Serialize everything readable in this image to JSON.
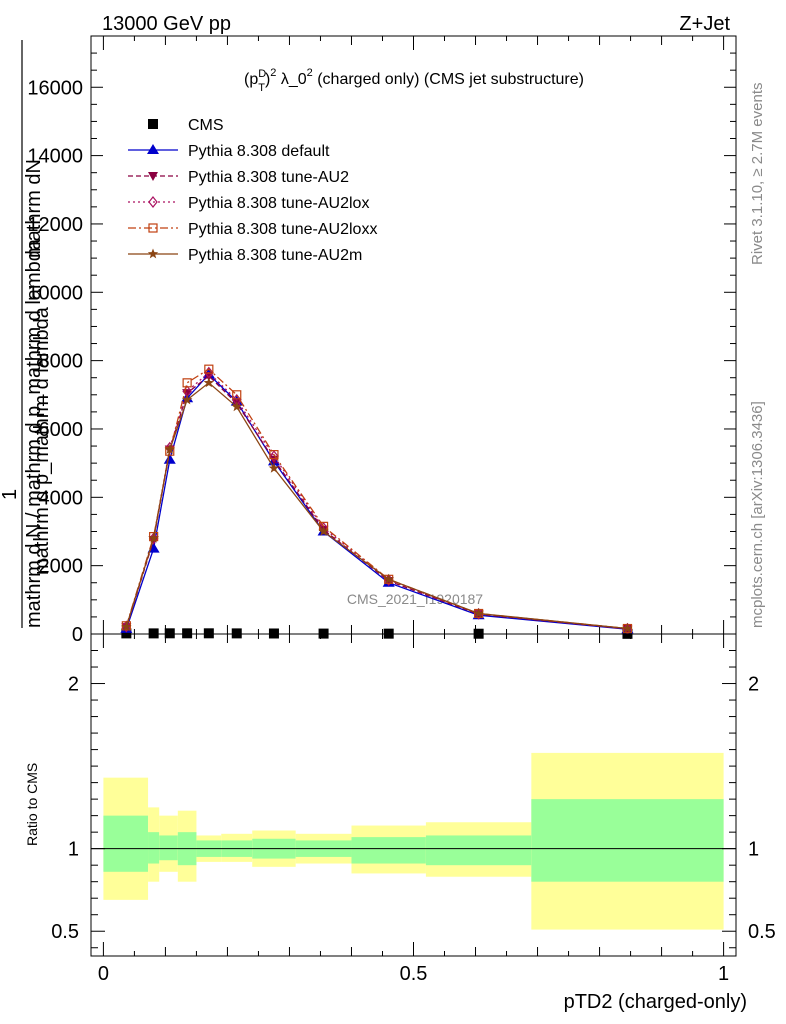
{
  "header": {
    "energy_label": "13000 GeV pp",
    "process_label": "Z+Jet"
  },
  "side_texts": {
    "rivet": "Rivet 3.1.10, ≥ 2.7M events",
    "mcplots": "mcplots.cern.ch [arXiv:1306.3436]"
  },
  "watermark": "CMS_2021_I1920187",
  "chart_data": [
    {
      "type": "line",
      "title": "(p_T^D)^2 λ_0^2 (charged only) (CMS jet substructure)",
      "title_parts": {
        "base": "(p",
        "sup1": "D",
        "sub1": "T",
        "mid": ")",
        "sup2": "2",
        "rest1": " λ_0",
        "sup3": "2",
        "rest2": " (charged only) (CMS jet substructure)"
      },
      "ylabel_top": "mathrm dN",
      "ylabel_bottom": "mathrm d p_mathrm d lambda",
      "ylabel_mid": "mathrm d N / mathrm d p_mathrm d p_mathrm d lambda",
      "ylabel_one": "1",
      "ylabel_long": "mathrm d N / mathrm d p_mathrm d lambda",
      "xlim": [
        -0.02,
        1.02
      ],
      "ylim": [
        0,
        17500
      ],
      "yticks": [
        0,
        2000,
        4000,
        6000,
        8000,
        10000,
        12000,
        14000,
        16000
      ],
      "ytick_labels": [
        "0",
        "2000",
        "4000",
        "6000",
        "8000",
        "10000",
        "12000",
        "14000",
        "16000"
      ],
      "legend_position": "top-left",
      "x": [
        0.037,
        0.081,
        0.107,
        0.135,
        0.17,
        0.215,
        0.275,
        0.355,
        0.46,
        0.605,
        0.845
      ],
      "series": [
        {
          "name": "CMS",
          "color": "#000000",
          "marker": "square",
          "dash": "none",
          "values": [
            18,
            18,
            20,
            20,
            20,
            18,
            15,
            12,
            10,
            8,
            5
          ]
        },
        {
          "name": "Pythia 8.308 default",
          "color": "#0000cc",
          "marker": "triangle-up",
          "dash": "solid",
          "values": [
            150,
            2500,
            5100,
            6900,
            7600,
            6800,
            5050,
            3000,
            1500,
            550,
            140
          ]
        },
        {
          "name": "Pythia 8.308 tune-AU2",
          "color": "#8b0040",
          "marker": "triangle-down",
          "dash": "5,3",
          "values": [
            200,
            2750,
            5400,
            7050,
            7550,
            6750,
            5100,
            3050,
            1550,
            580,
            150
          ]
        },
        {
          "name": "Pythia 8.308 tune-AU2lox",
          "color": "#aa1060",
          "marker": "diamond",
          "dash": "2,3",
          "values": [
            220,
            2800,
            5450,
            7100,
            7650,
            6850,
            5200,
            3100,
            1580,
            590,
            155
          ]
        },
        {
          "name": "Pythia 8.308 tune-AU2loxx",
          "color": "#c04010",
          "marker": "square-open",
          "dash": "8,3,2,3",
          "values": [
            240,
            2850,
            5350,
            7350,
            7750,
            7000,
            5250,
            3150,
            1600,
            600,
            160
          ]
        },
        {
          "name": "Pythia 8.308 tune-AU2m",
          "color": "#8b4513",
          "marker": "star",
          "dash": "solid",
          "values": [
            210,
            2800,
            5400,
            6850,
            7350,
            6650,
            4850,
            3000,
            1600,
            600,
            160
          ]
        }
      ]
    },
    {
      "type": "area",
      "ylabel": "Ratio to CMS",
      "xlabel": "pTD2 (charged-only)",
      "xlim": [
        -0.02,
        1.02
      ],
      "ylim": [
        0.35,
        2.3
      ],
      "yticks": [
        0.5,
        1,
        2
      ],
      "ytick_labels": [
        "0.5",
        "1",
        "2"
      ],
      "xticks": [
        0,
        0.5,
        1
      ],
      "xtick_labels": [
        "0",
        "0.5",
        "1"
      ],
      "reference_line": 1,
      "bands": [
        {
          "x0": 0.0,
          "x1": 0.072,
          "green": [
            0.86,
            1.2
          ],
          "yellow": [
            0.69,
            1.43
          ]
        },
        {
          "x0": 0.072,
          "x1": 0.09,
          "green": [
            0.91,
            1.1
          ],
          "yellow": [
            0.8,
            1.25
          ]
        },
        {
          "x0": 0.09,
          "x1": 0.12,
          "green": [
            0.93,
            1.08
          ],
          "yellow": [
            0.86,
            1.2
          ]
        },
        {
          "x0": 0.12,
          "x1": 0.15,
          "green": [
            0.9,
            1.1
          ],
          "yellow": [
            0.8,
            1.23
          ]
        },
        {
          "x0": 0.15,
          "x1": 0.19,
          "green": [
            0.95,
            1.05
          ],
          "yellow": [
            0.92,
            1.08
          ]
        },
        {
          "x0": 0.19,
          "x1": 0.24,
          "green": [
            0.95,
            1.05
          ],
          "yellow": [
            0.92,
            1.09
          ]
        },
        {
          "x0": 0.24,
          "x1": 0.31,
          "green": [
            0.94,
            1.06
          ],
          "yellow": [
            0.89,
            1.11
          ]
        },
        {
          "x0": 0.31,
          "x1": 0.4,
          "green": [
            0.95,
            1.05
          ],
          "yellow": [
            0.91,
            1.09
          ]
        },
        {
          "x0": 0.4,
          "x1": 0.52,
          "green": [
            0.91,
            1.07
          ],
          "yellow": [
            0.85,
            1.14
          ]
        },
        {
          "x0": 0.52,
          "x1": 0.69,
          "green": [
            0.9,
            1.08
          ],
          "yellow": [
            0.83,
            1.16
          ]
        },
        {
          "x0": 0.69,
          "x1": 1.0,
          "green": [
            0.8,
            1.3
          ],
          "yellow": [
            0.51,
            1.58
          ]
        }
      ],
      "band_colors": {
        "green": "#99ff99",
        "yellow": "#ffff99"
      }
    }
  ]
}
